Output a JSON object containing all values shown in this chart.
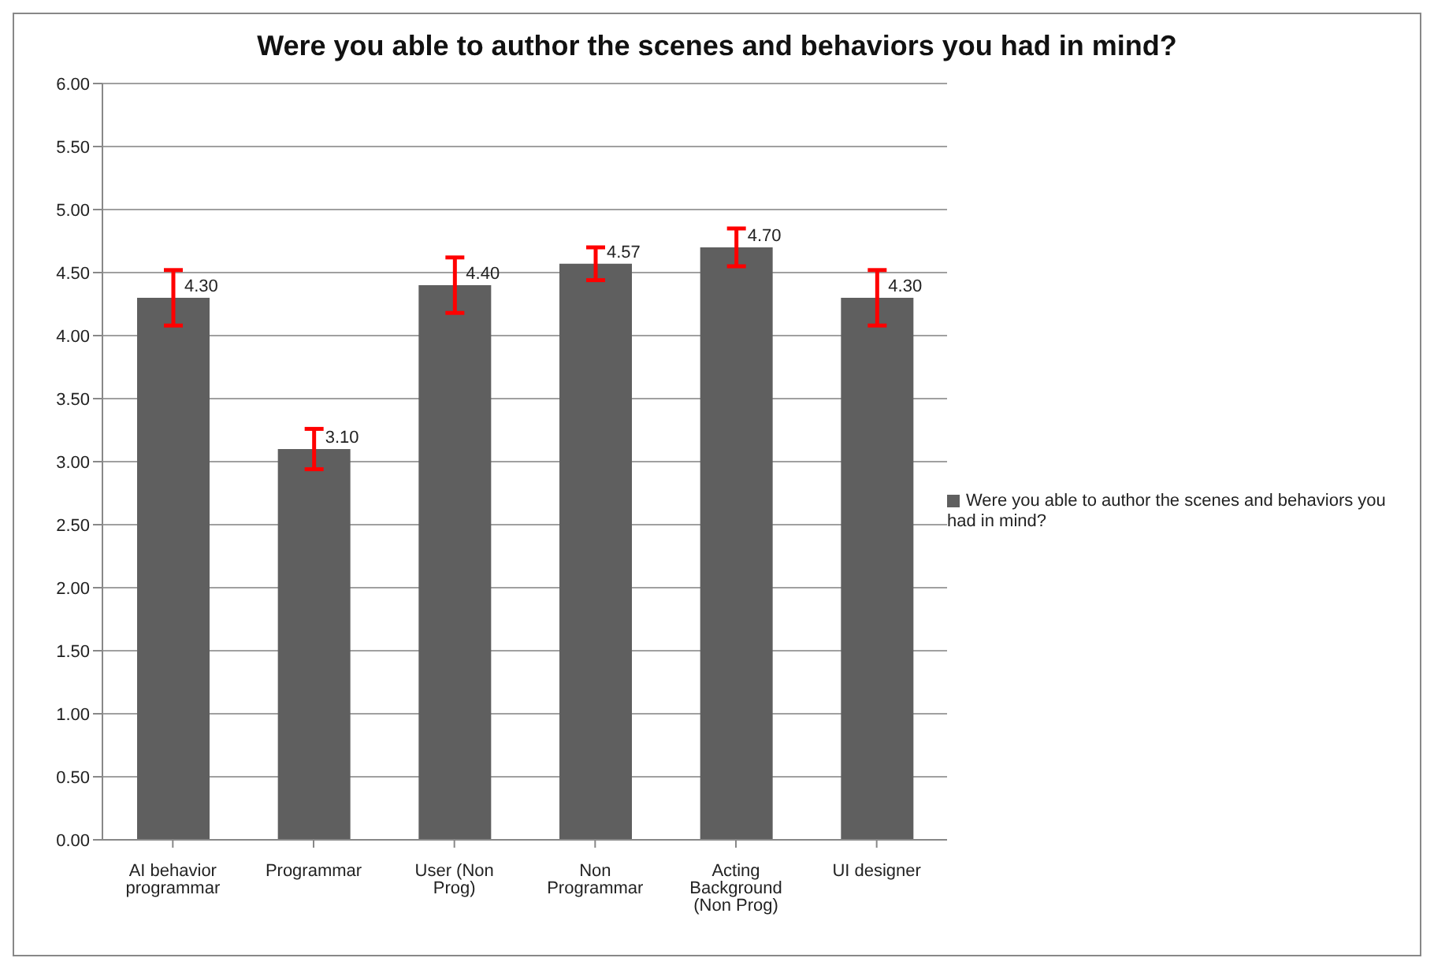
{
  "chart_data": {
    "type": "bar",
    "title": "Were you able to author the scenes and behaviors you had in mind?",
    "categories": [
      "AI behavior programmar",
      "Programmar",
      "User (Non Prog)",
      "Non Programmar",
      "Acting Background (Non Prog)",
      "UI designer"
    ],
    "series": [
      {
        "name": "Were you able to author the scenes and behaviors you had in mind?",
        "color": "#5f5f5f",
        "values": [
          4.3,
          3.1,
          4.4,
          4.57,
          4.7,
          4.3
        ],
        "errors": [
          0.22,
          0.16,
          0.22,
          0.13,
          0.15,
          0.22
        ],
        "value_labels": [
          "4.30",
          "3.10",
          "4.40",
          "4.57",
          "4.70",
          "4.30"
        ]
      }
    ],
    "ylim": [
      0,
      6
    ],
    "yticks": [
      {
        "value": 0,
        "label": "0.00"
      },
      {
        "value": 0.5,
        "label": "0.50"
      },
      {
        "value": 1,
        "label": "1.00"
      },
      {
        "value": 1.5,
        "label": "1.50"
      },
      {
        "value": 2,
        "label": "2.00"
      },
      {
        "value": 2.5,
        "label": "2.50"
      },
      {
        "value": 3,
        "label": "3.00"
      },
      {
        "value": 3.5,
        "label": "3.50"
      },
      {
        "value": 4,
        "label": "4.00"
      },
      {
        "value": 4.5,
        "label": "4.50"
      },
      {
        "value": 5,
        "label": "5.00"
      },
      {
        "value": 5.5,
        "label": "5.50"
      },
      {
        "value": 6,
        "label": "6.00"
      }
    ],
    "grid": "y",
    "legend": "right"
  }
}
